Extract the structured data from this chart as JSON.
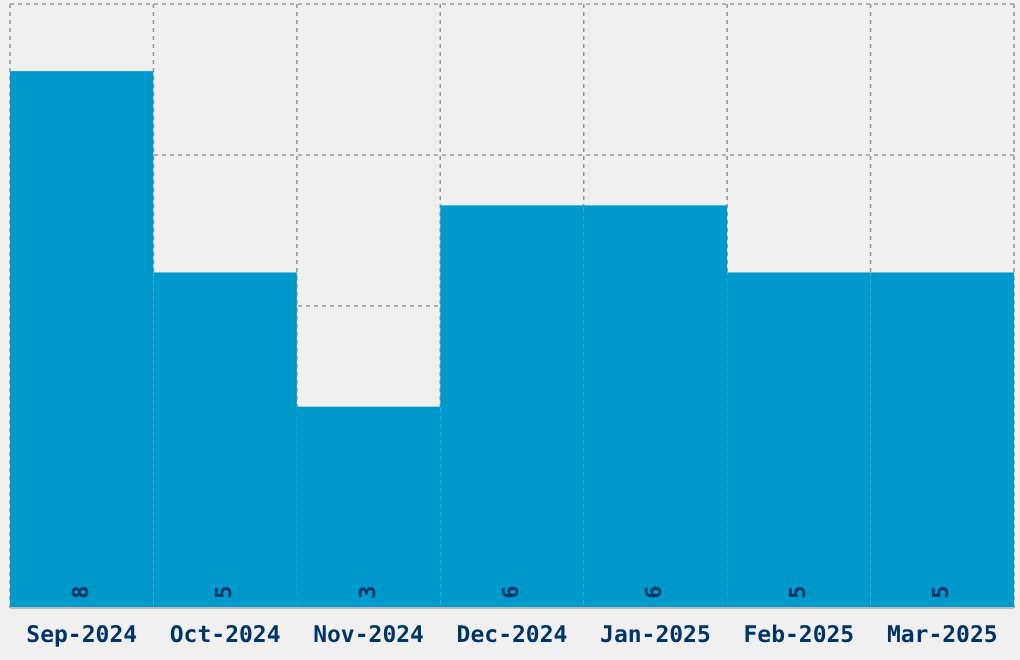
{
  "chart_data": {
    "type": "bar",
    "categories": [
      "Sep-2024",
      "Oct-2024",
      "Nov-2024",
      "Dec-2024",
      "Jan-2025",
      "Feb-2025",
      "Mar-2025"
    ],
    "values": [
      8,
      5,
      3,
      6,
      6,
      5,
      5
    ],
    "color": "#0099cc",
    "ylim": [
      0,
      9
    ],
    "tick_labels": "x",
    "grid": true,
    "data_labels": true
  }
}
